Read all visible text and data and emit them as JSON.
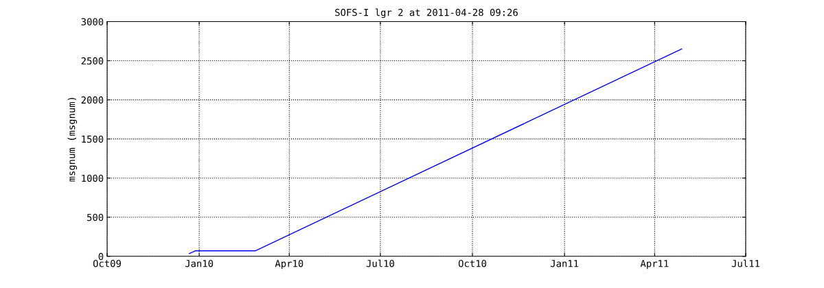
{
  "chart_data": {
    "type": "line",
    "title": "SOFS-I lgr 2 at 2011-04-28 09:26",
    "ylabel": "msgnum (msgnum)",
    "series": [
      {
        "color": "#0000ff",
        "x": [
          "2009-12-22",
          "2009-12-28",
          "2010-02-26",
          "2011-04-28"
        ],
        "values": [
          35,
          70,
          70,
          2650
        ]
      }
    ],
    "xlim": [
      "2009-10-01",
      "2011-07-01"
    ],
    "xticks": [
      {
        "value": "2009-10-01",
        "label": "Oct09"
      },
      {
        "value": "2010-01-01",
        "label": "Jan10"
      },
      {
        "value": "2010-04-01",
        "label": "Apr10"
      },
      {
        "value": "2010-07-01",
        "label": "Jul10"
      },
      {
        "value": "2010-10-01",
        "label": "Oct10"
      },
      {
        "value": "2011-01-01",
        "label": "Jan11"
      },
      {
        "value": "2011-04-01",
        "label": "Apr11"
      },
      {
        "value": "2011-07-01",
        "label": "Jul11"
      }
    ],
    "ylim": [
      0,
      3000
    ],
    "yticks": [
      0,
      500,
      1000,
      1500,
      2000,
      2500,
      3000
    ],
    "grid": true,
    "line_style": "solid",
    "marker": "none"
  }
}
